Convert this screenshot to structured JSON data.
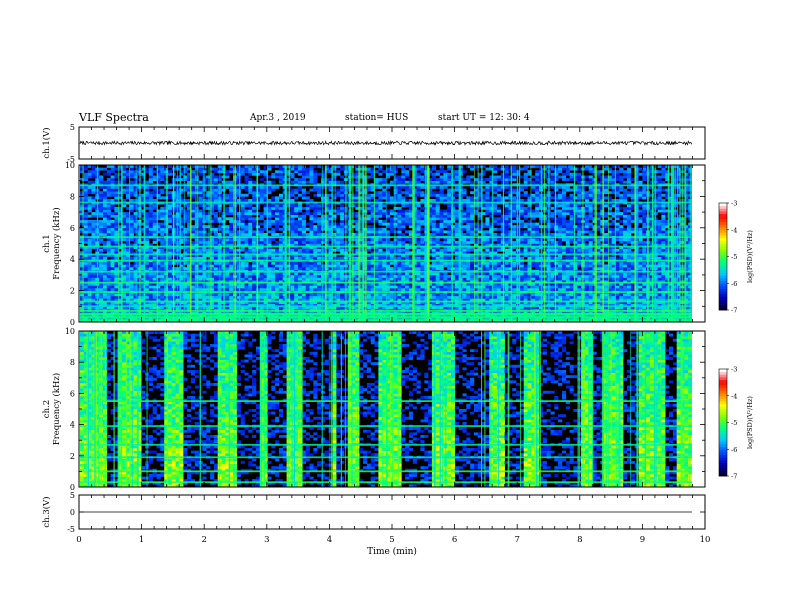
{
  "header": {
    "title": "VLF Spectra",
    "date": "Apr.3  , 2019",
    "station": "station= HUS",
    "start_ut": "start  UT  =   12: 30: 4"
  },
  "colors": {
    "background": "#ffffff",
    "axis": "#000000",
    "spectrogram_floor": "#000000",
    "colormap": [
      "#000030",
      "#0000c0",
      "#0050ff",
      "#00c8ff",
      "#00ff80",
      "#80ff00",
      "#ffff00",
      "#ff8000",
      "#ff0000",
      "#ffffff"
    ]
  },
  "chart_data": [
    {
      "type": "line",
      "name": "ch1-waveform",
      "ylabel": "ch.1(V)",
      "ylim": [
        -5,
        5
      ],
      "yticks": [
        "5",
        "-5"
      ],
      "xlim": [
        0,
        10
      ],
      "description_values": "noisy trace near 0 V",
      "baseline": 0
    },
    {
      "type": "heatmap",
      "name": "ch1-spectrogram",
      "ylabel": "ch.1\nFrequency (kHz)",
      "ylim": [
        0,
        10
      ],
      "yticks": [
        "0",
        "2",
        "4",
        "6",
        "8",
        "10"
      ],
      "xlim": [
        0,
        10
      ],
      "colorbar": {
        "label": "log(PSD)(V²/Hz)",
        "range": [
          -7,
          -3
        ],
        "ticks": [
          "-3",
          "-4",
          "-5",
          "-6",
          "-7"
        ]
      },
      "bands_khz": [
        0.1,
        0.3,
        0.5,
        0.7,
        1.0,
        1.3,
        1.9,
        2.5,
        3.2,
        3.9,
        4.3,
        4.8,
        5.4,
        7.6,
        8.7
      ],
      "seed": 11
    },
    {
      "type": "heatmap",
      "name": "ch2-spectrogram",
      "ylabel": "ch.2\nFrequency (kHz)",
      "ylim": [
        0,
        10
      ],
      "yticks": [
        "0",
        "2",
        "4",
        "6",
        "8",
        "10"
      ],
      "xlim": [
        0,
        10
      ],
      "colorbar": {
        "label": "log(PSD)(V²/Hz)",
        "range": [
          -7,
          -3
        ],
        "ticks": [
          "-3",
          "-4",
          "-5",
          "-6",
          "-7"
        ]
      },
      "bands_khz": [
        0.3,
        1.0,
        1.9,
        2.7,
        3.9,
        5.5
      ],
      "active_intervals_min": [
        [
          0.0,
          0.4
        ],
        [
          0.6,
          0.95
        ],
        [
          1.3,
          1.6
        ],
        [
          2.2,
          2.5
        ],
        [
          2.85,
          3.0
        ],
        [
          3.3,
          3.55
        ],
        [
          4.0,
          4.1
        ],
        [
          4.25,
          4.45
        ],
        [
          4.75,
          5.1
        ],
        [
          5.6,
          5.95
        ],
        [
          6.55,
          6.75
        ],
        [
          7.05,
          7.35
        ],
        [
          8.0,
          8.2
        ],
        [
          8.35,
          8.65
        ],
        [
          8.9,
          9.35
        ],
        [
          9.55,
          9.8
        ]
      ],
      "seed": 23
    },
    {
      "type": "line",
      "name": "ch3-waveform",
      "ylabel": "ch.3(V)",
      "ylim": [
        -5,
        5
      ],
      "yticks": [
        "5",
        "0",
        "-5"
      ],
      "xlim": [
        0,
        10
      ],
      "xlabel": "Time (min)",
      "xticks": [
        "0",
        "1",
        "2",
        "3",
        "4",
        "5",
        "6",
        "7",
        "8",
        "9",
        "10"
      ],
      "baseline": 0
    }
  ]
}
